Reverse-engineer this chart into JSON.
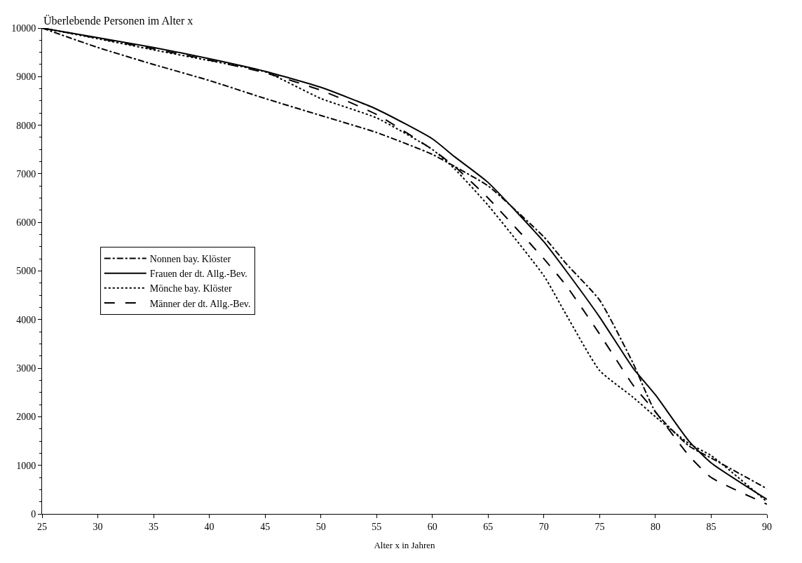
{
  "chart_data": {
    "type": "line",
    "ylabel": "Überlebende Personen im Alter x",
    "xlabel": "Alter x in Jahren",
    "xlim": [
      25,
      90
    ],
    "xticks": [
      25,
      30,
      35,
      40,
      45,
      50,
      55,
      60,
      65,
      70,
      75,
      80,
      85,
      90
    ],
    "ylim": [
      0,
      10000
    ],
    "yticks": [
      0,
      1000,
      2000,
      3000,
      4000,
      5000,
      6000,
      7000,
      8000,
      9000,
      10000
    ],
    "legend": "left",
    "marker": "none",
    "x": [
      25,
      30,
      35,
      40,
      45,
      50,
      55,
      60,
      62,
      65,
      70,
      72,
      75,
      78,
      80,
      83,
      85,
      90
    ],
    "series": [
      {
        "name": "Nonnen bay. Klöster",
        "color": "#000000",
        "line_style": "dashdot",
        "values": [
          10000,
          9600,
          9250,
          8920,
          8550,
          8200,
          7850,
          7400,
          7150,
          6750,
          5700,
          5150,
          4400,
          3100,
          2100,
          1400,
          1150,
          520
        ]
      },
      {
        "name": "Frauen der dt. Allg.-Bev.",
        "color": "#000000",
        "line_style": "solid",
        "values": [
          10000,
          9800,
          9600,
          9370,
          9110,
          8780,
          8330,
          7720,
          7350,
          6820,
          5600,
          5000,
          4050,
          3000,
          2450,
          1500,
          1050,
          300
        ]
      },
      {
        "name": "Mönche bay. Klöster",
        "color": "#000000",
        "line_style": "dotted",
        "values": [
          10000,
          9780,
          9550,
          9330,
          9100,
          8550,
          8150,
          7500,
          7100,
          6350,
          4900,
          4100,
          2950,
          2400,
          2000,
          1450,
          1200,
          250
        ]
      },
      {
        "name": "Männer der dt. Allg.-Bev.",
        "color": "#000000",
        "line_style": "dashed",
        "values": [
          10000,
          9790,
          9570,
          9340,
          9080,
          8720,
          8220,
          7500,
          7150,
          6500,
          5250,
          4700,
          3700,
          2650,
          2100,
          1200,
          750,
          200
        ]
      }
    ]
  }
}
